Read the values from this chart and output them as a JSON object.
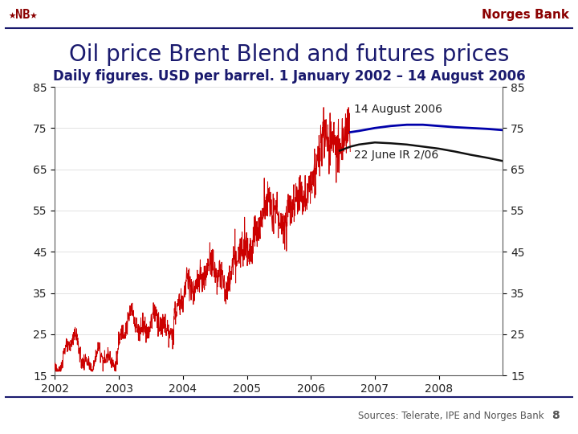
{
  "title": "Oil price Brent Blend and futures prices",
  "subtitle": "Daily figures. USD per barrel. 1 January 2002 – 14 August 2006",
  "header_right": "Norges Bank",
  "source_text": "Sources: Telerate, IPE and Norges Bank",
  "page_number": "8",
  "ylim": [
    15,
    85
  ],
  "yticks": [
    15,
    25,
    35,
    45,
    55,
    65,
    75,
    85
  ],
  "xlim_start": 2002.0,
  "xlim_end": 2009.0,
  "xticks": [
    2002,
    2003,
    2004,
    2005,
    2006,
    2007,
    2008
  ],
  "brent_color": "#cc0000",
  "futures_aug_color": "#0000aa",
  "futures_jun_color": "#111111",
  "background_color": "#ffffff",
  "title_color": "#1a1a6e",
  "subtitle_color": "#1a1a6e",
  "header_nb_color": "#8b0000",
  "header_nb_text": "★NB★",
  "header_right_color": "#8b0000",
  "separator_color": "#1a1a6e",
  "source_color": "#555555",
  "annotation_aug": "14 August 2006",
  "annotation_jun": "22 June IR 2/06",
  "title_fontsize": 20,
  "subtitle_fontsize": 12,
  "tick_fontsize": 10,
  "annotation_fontsize": 10,
  "futures_aug_x": [
    2006.62,
    2006.75,
    2007.0,
    2007.25,
    2007.5,
    2007.75,
    2008.0,
    2008.25,
    2008.5,
    2008.75,
    2009.0
  ],
  "futures_aug_y": [
    74.0,
    74.3,
    75.0,
    75.5,
    75.8,
    75.8,
    75.5,
    75.2,
    75.0,
    74.8,
    74.5
  ],
  "futures_jun_x": [
    2006.45,
    2006.62,
    2006.75,
    2007.0,
    2007.25,
    2007.5,
    2007.75,
    2008.0,
    2008.25,
    2008.5,
    2008.75,
    2009.0
  ],
  "futures_jun_y": [
    69.5,
    70.5,
    71.0,
    71.5,
    71.3,
    71.0,
    70.5,
    70.0,
    69.3,
    68.5,
    67.8,
    67.0
  ]
}
